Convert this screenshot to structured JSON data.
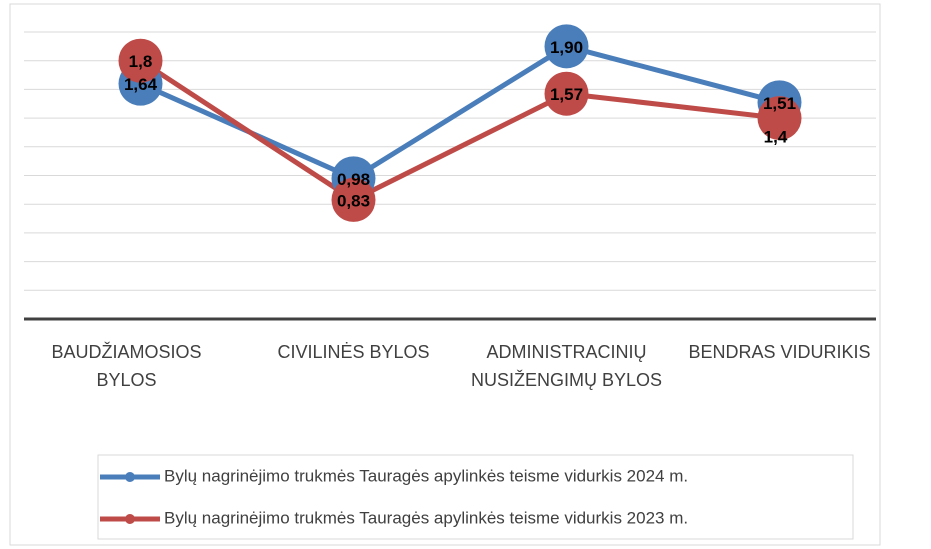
{
  "chart_data": {
    "type": "line",
    "categories": [
      "BAUDŽIAMOSIOS BYLOS",
      "CIVILINĖS BYLOS",
      "ADMINISTRACINIŲ NUSIŽENGIMŲ BYLOS",
      "BENDRAS VIDURIKIS"
    ],
    "series": [
      {
        "name": "Bylų nagrinėjimo trukmės Tauragės apylinkės teisme vidurkis 2024 m.",
        "color": "#4a7ebb",
        "values": [
          1.64,
          0.98,
          1.9,
          1.51
        ],
        "value_labels": [
          "1,64",
          "0,98",
          "1,90",
          "1,51"
        ]
      },
      {
        "name": "Bylų nagrinėjimo trukmės Tauragės apylinkės teisme vidurkis 2023 m.",
        "color": "#be4b48",
        "values": [
          1.8,
          0.83,
          1.57,
          1.4
        ],
        "value_labels": [
          "1,8",
          "0,83",
          "1,57",
          "1,4"
        ]
      }
    ],
    "ylim": [
      0,
      2
    ],
    "yticks": [
      0,
      0.2,
      0.4,
      0.6,
      0.8,
      1,
      1.2,
      1.4,
      1.6,
      1.8,
      2
    ],
    "grid": true
  }
}
